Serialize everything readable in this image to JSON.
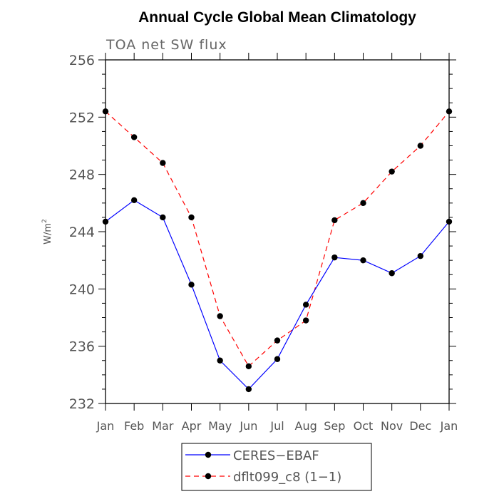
{
  "chart_data": {
    "type": "line",
    "title": "Annual Cycle Global Mean Climatology",
    "subtitle": "TOA net SW flux",
    "xlabel": "",
    "ylabel_base": "W/m",
    "ylabel_sup": "2",
    "categories": [
      "Jan",
      "Feb",
      "Mar",
      "Apr",
      "May",
      "Jun",
      "Jul",
      "Aug",
      "Sep",
      "Oct",
      "Nov",
      "Dec",
      "Jan"
    ],
    "ylim": [
      232,
      256
    ],
    "yticks": [
      232,
      236,
      240,
      244,
      248,
      252,
      256
    ],
    "legend_position": "bottom-center",
    "series": [
      {
        "name": "CERES−EBAF",
        "color": "#0000ff",
        "line_style": "solid",
        "marker": "filled-circle",
        "values": [
          244.7,
          246.2,
          245.0,
          240.3,
          235.0,
          233.0,
          235.1,
          238.9,
          242.2,
          242.0,
          241.1,
          242.3,
          244.7
        ]
      },
      {
        "name": "dflt099_c8 (1−1)",
        "color": "#ff0000",
        "line_style": "dashed",
        "marker": "filled-circle",
        "values": [
          252.4,
          250.6,
          248.8,
          245.0,
          238.1,
          234.6,
          236.4,
          237.8,
          244.8,
          246.0,
          248.2,
          250.0,
          252.4
        ]
      }
    ]
  }
}
